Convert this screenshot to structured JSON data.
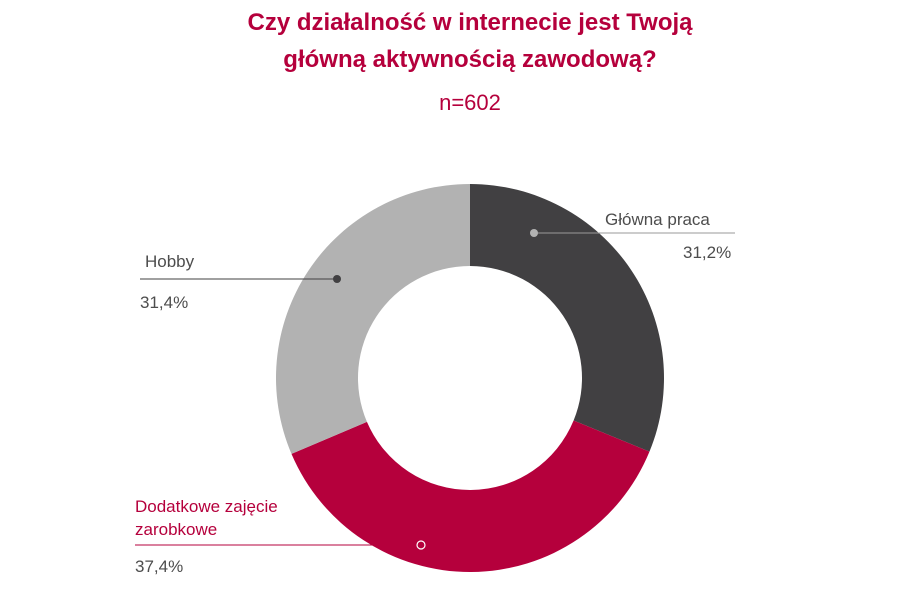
{
  "chart_data": {
    "type": "pie",
    "title": [
      "Czy działalność w internecie jest Twoją",
      "główną aktywnością zawodową?"
    ],
    "subtitle": "n=602",
    "donut": true,
    "slices": [
      {
        "label": "Główna praca",
        "value": 31.2,
        "value_label": "31,2%",
        "color": "#414042"
      },
      {
        "label": "Dodatkowe zajęcie zarobkowe",
        "label_lines": [
          "Dodatkowe zajęcie",
          "zarobkowe"
        ],
        "value": 37.4,
        "value_label": "37,4%",
        "color": "#b5003c"
      },
      {
        "label": "Hobby",
        "value": 31.4,
        "value_label": "31,4%",
        "color": "#b2b2b2"
      }
    ]
  }
}
